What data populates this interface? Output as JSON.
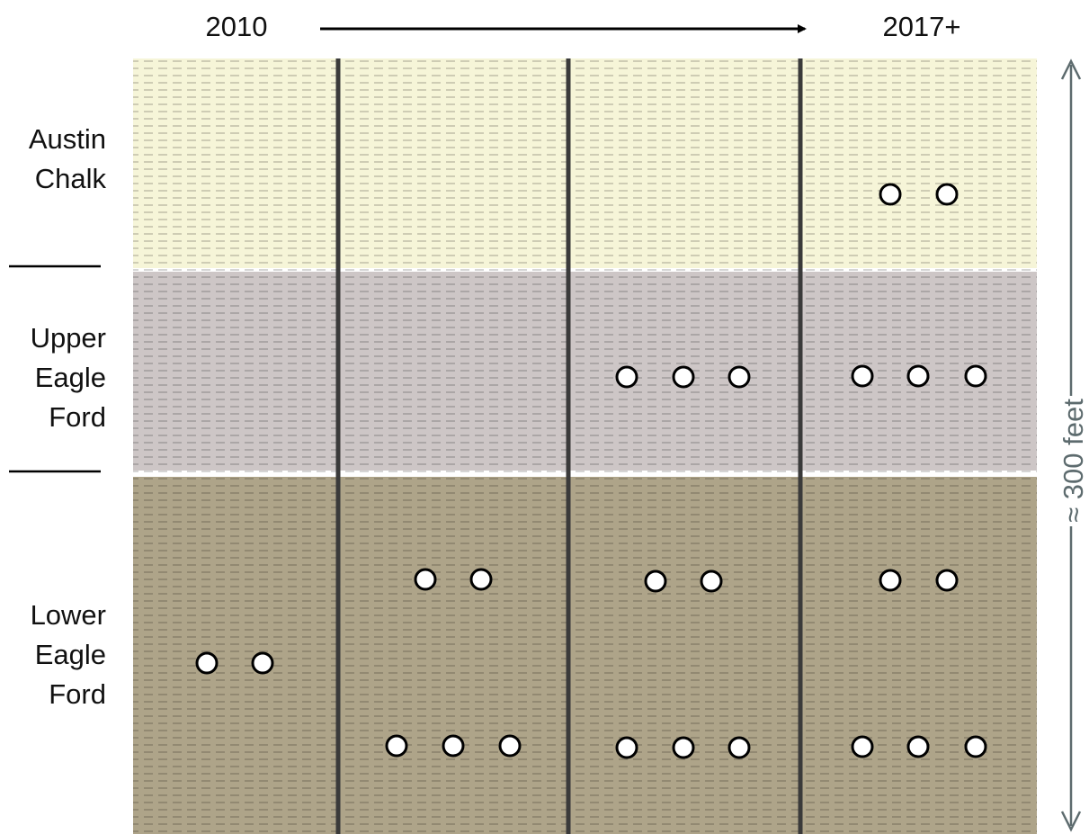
{
  "timeline": {
    "start": "2010",
    "end": "2017+"
  },
  "layers": [
    {
      "name": [
        "Austin",
        "Chalk"
      ]
    },
    {
      "name": [
        "Upper",
        "Eagle",
        "Ford"
      ]
    },
    {
      "name": [
        "Lower",
        "Eagle",
        "Ford"
      ]
    }
  ],
  "scale_label": "≈ 300 feet"
}
